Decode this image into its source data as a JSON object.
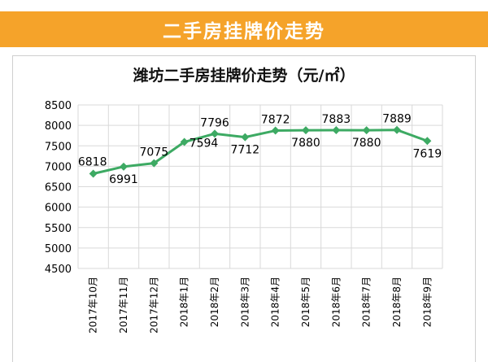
{
  "banner": {
    "title": "二手房挂牌价走势"
  },
  "chart_data": {
    "type": "line",
    "title": "潍坊二手房挂牌价走势（元/㎡）",
    "categories": [
      "2017年10月",
      "2017年11月",
      "2017年12月",
      "2018年1月",
      "2018年2月",
      "2018年3月",
      "2018年4月",
      "2018年5月",
      "2018年6月",
      "2018年7月",
      "2018年8月",
      "2018年9月"
    ],
    "values": [
      6818,
      6991,
      7075,
      7594,
      7796,
      7712,
      7872,
      7880,
      7883,
      7880,
      7889,
      7619
    ],
    "data_label_side": [
      "left",
      "below",
      "above",
      "right",
      "above",
      "below",
      "above",
      "below",
      "above",
      "below",
      "above",
      "below"
    ],
    "yticks": [
      4500,
      5000,
      5500,
      6000,
      6500,
      7000,
      7500,
      8000,
      8500
    ],
    "ylim": [
      4500,
      8500
    ],
    "grid": true,
    "legend": "none",
    "colors": {
      "line": "#3daa63",
      "marker": "#3daa63",
      "grid": "#d9d9d9",
      "banner": "#f5a32a"
    }
  }
}
